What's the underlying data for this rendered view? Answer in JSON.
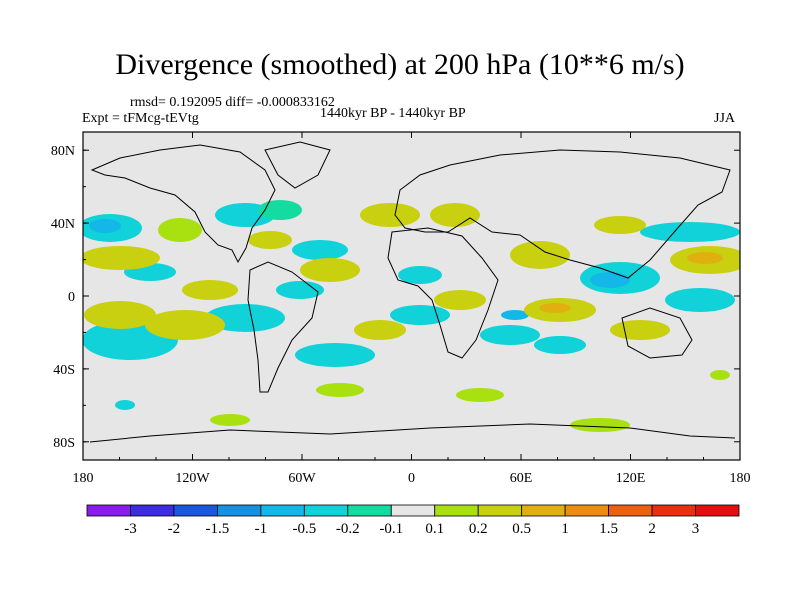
{
  "title": "Divergence (smoothed) at 200 hPa (10**6 m/s)",
  "stats_text": "rmsd= 0.192095 diff= -0.000833162",
  "experiment": "Expt = tFMcg-tEVtg",
  "period": "1440kyr BP - 1440kyr BP",
  "season": "JJA",
  "colors": {
    "land_mask": "#e6e6e6",
    "coast": "#000000"
  },
  "chart_data": {
    "type": "heatmap",
    "projection": "cylindrical-equidistant",
    "x_ticks": [
      "180",
      "120W",
      "60W",
      "0",
      "60E",
      "120E",
      "180"
    ],
    "y_ticks": [
      "80N",
      "40N",
      "0",
      "40S",
      "80S"
    ],
    "lon_range": [
      -180,
      180
    ],
    "lat_range": [
      -90,
      90
    ],
    "legend": {
      "labels": [
        "-3",
        "-2",
        "-1.5",
        "-1",
        "-0.5",
        "-0.2",
        "-0.1",
        "0.1",
        "0.2",
        "0.5",
        "1",
        "1.5",
        "2",
        "3"
      ],
      "colors": [
        "#8a1cf0",
        "#3d2ce0",
        "#1a58e0",
        "#1690e0",
        "#14b8e8",
        "#10d2d8",
        "#14dca0",
        "#e6e6e6",
        "#a8e010",
        "#c8d010",
        "#e0b010",
        "#ec8c10",
        "#ec6010",
        "#e83010",
        "#e21010"
      ]
    }
  }
}
